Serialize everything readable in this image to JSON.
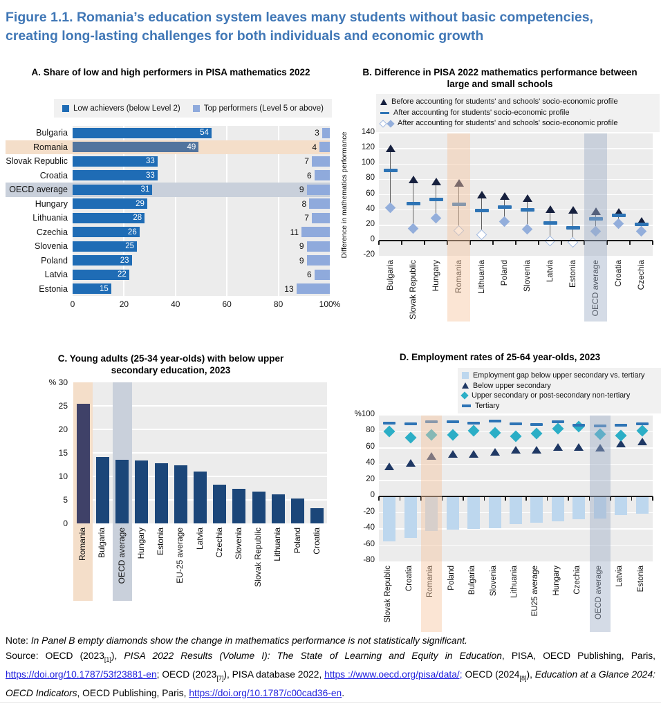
{
  "figure_title": {
    "line1": "Figure 1.1. Romania’s education system leaves many students without basic competencies,",
    "line2": "creating long-lasting challenges for both individuals and economic growth"
  },
  "colors": {
    "figure_title": "#4077B6",
    "plot_bg": "#ECECEC",
    "legend_bg": "#F1F1F1",
    "highlight_orange": "#F4DEC9",
    "highlight_bluegrey": "#C9D0DB",
    "overlay_orange": "rgba(246,198,160,0.45)",
    "overlay_bluegrey": "rgba(160,175,200,0.45)",
    "axis_line": "#1A1A1A",
    "link_blue": "#2222DD"
  },
  "chart_data": [
    {
      "id": "A",
      "type": "bar",
      "orientation": "horizontal",
      "title": "A. Share of low and high performers in PISA mathematics 2022",
      "legend": [
        {
          "label": "Low achievers (below Level 2)",
          "marker": "square",
          "color": "#1F6CB5"
        },
        {
          "label": "Top performers (Level 5 or above)",
          "marker": "square",
          "color": "#8FAADC"
        }
      ],
      "categories": [
        "Bulgaria",
        "Romania",
        "Slovak Republic",
        "Croatia",
        "OECD average",
        "Hungary",
        "Lithuania",
        "Czechia",
        "Slovenia",
        "Poland",
        "Latvia",
        "Estonia"
      ],
      "series": [
        {
          "name": "Low achievers (below Level 2)",
          "color": "#1F6CB5",
          "values": [
            54,
            49,
            33,
            33,
            31,
            29,
            28,
            26,
            25,
            23,
            22,
            15
          ]
        },
        {
          "name": "Top performers (Level 5 or above)",
          "color": "#8FAADC",
          "values": [
            3,
            4,
            7,
            6,
            9,
            8,
            7,
            11,
            9,
            9,
            6,
            13
          ]
        }
      ],
      "romania_bar_color": "#52749E",
      "x_ticks": [
        "0",
        "20",
        "40",
        "60",
        "80",
        "100%"
      ],
      "xlim": [
        0,
        100
      ],
      "highlights": [
        {
          "category": "Romania",
          "color": "#F4DEC9"
        },
        {
          "category": "OECD average",
          "color": "#C9D0DB"
        }
      ]
    },
    {
      "id": "B",
      "type": "scatter",
      "title": "B. Difference in PISA 2022 mathematics performance between large and small schools",
      "ylabel": "Difference in mathematics performance",
      "legend": [
        {
          "label": "Before accounting for students' and schools' socio-economic profile",
          "marker": "triangle",
          "color": "#16203E"
        },
        {
          "label": "After accounting for students' socio-economic profile",
          "marker": "dash",
          "color": "#2E74B5"
        },
        {
          "label": "After accounting for students' and schools' socio-economic profile",
          "marker": "diamond-pair",
          "color": "#93AEDB"
        }
      ],
      "categories": [
        "Bulgaria",
        "Slovak Republic",
        "Hungary",
        "Romania",
        "Lithuania",
        "Poland",
        "Slovenia",
        "Latvia",
        "Estonia",
        "OECD average",
        "Croatia",
        "Czechia"
      ],
      "series": [
        {
          "name": "Before accounting for students' and schools' socio-economic profile",
          "marker": "triangle",
          "color": "#16203E",
          "values": [
            120,
            79,
            77,
            75,
            60,
            58,
            55,
            41,
            40,
            38,
            37,
            25
          ]
        },
        {
          "name": "After accounting for students' socio-economic profile",
          "marker": "dash",
          "color": "#2E74B5",
          "values": [
            92,
            48,
            54,
            47,
            39,
            44,
            40,
            23,
            17,
            28,
            33,
            21
          ]
        },
        {
          "name": "After accounting for students' and schools' socio-economic profile",
          "marker": "diamond",
          "color": "#93AEDB",
          "values": [
            43,
            16,
            29,
            13,
            8,
            25,
            15,
            -1,
            -2,
            12,
            22,
            12
          ]
        }
      ],
      "not_significant": [
        "Romania",
        "Lithuania",
        "Latvia",
        "Estonia"
      ],
      "diamond_empty_border": "#9FB8DF",
      "y_ticks": [
        "140",
        "120",
        "100",
        "80",
        "60",
        "40",
        "20",
        "0",
        "-20"
      ],
      "ylim": [
        -20,
        140
      ],
      "highlights": [
        {
          "category": "Romania",
          "color": "rgba(246,198,160,0.45)"
        },
        {
          "category": "OECD average",
          "color": "rgba(160,175,200,0.45)"
        }
      ]
    },
    {
      "id": "C",
      "type": "bar",
      "orientation": "vertical",
      "title": "C. Young adults (25-34 year-olds) with below upper secondary education, 2023",
      "categories": [
        "Romania",
        "Bulgaria",
        "OECD average",
        "Hungary",
        "Estonia",
        "EU-25 average",
        "Latvia",
        "Czechia",
        "Slovenia",
        "Slovak Republic",
        "Lithuania",
        "Poland",
        "Croatia"
      ],
      "values": [
        25.4,
        14.1,
        13.6,
        13.4,
        12.8,
        12.3,
        11.0,
        8.3,
        7.3,
        6.7,
        6.2,
        5.3,
        3.3
      ],
      "bar_color": "#1B4679",
      "romania_bar_color": "#3F4168",
      "y_ticks": [
        "% 30",
        "25",
        "20",
        "15",
        "10",
        "5",
        "0"
      ],
      "ylim": [
        0,
        30
      ],
      "highlights": [
        {
          "category": "Romania",
          "color": "#F4DEC9"
        },
        {
          "category": "OECD average",
          "color": "#C9D0DB"
        }
      ]
    },
    {
      "id": "D",
      "type": "mixed",
      "title": "D. Employment rates of 25-64 year-olds, 2023",
      "legend": [
        {
          "label": "Employment gap below upper secondary vs. tertiary",
          "marker": "square",
          "color": "#BDD7EE"
        },
        {
          "label": "Below upper secondary",
          "marker": "triangle",
          "color": "#1F3864"
        },
        {
          "label": "Upper secondary or post-secondary non-tertiary",
          "marker": "diamond",
          "color": "#2BAEC6"
        },
        {
          "label": "Tertiary",
          "marker": "dash",
          "color": "#2E74B5"
        }
      ],
      "categories": [
        "Slovak Republic",
        "Croatia",
        "Romania",
        "Poland",
        "Bulgaria",
        "Slovenia",
        "Lithuania",
        "EU25 average",
        "Hungary",
        "Czechia",
        "OECD average",
        "Latvia",
        "Estonia"
      ],
      "series": [
        {
          "name": "Employment gap below upper secondary vs. tertiary",
          "marker": "bar",
          "color": "#BDD7EE",
          "values": [
            -54,
            -50,
            -42,
            -40,
            -39,
            -38,
            -33,
            -31,
            -30,
            -27,
            -26,
            -22,
            -20
          ]
        },
        {
          "name": "Below upper secondary",
          "marker": "triangle",
          "color": "#1F3864",
          "values": [
            37,
            41,
            50,
            52,
            52,
            55,
            57,
            57,
            61,
            61,
            60,
            65,
            68
          ]
        },
        {
          "name": "Upper secondary or post-secondary non-tertiary",
          "marker": "diamond",
          "color": "#2BAEC6",
          "values": [
            80,
            73,
            76,
            76,
            81,
            79,
            74,
            78,
            84,
            86,
            77,
            75,
            81
          ]
        },
        {
          "name": "Tertiary",
          "marker": "dash",
          "color": "#2E74B5",
          "values": [
            91,
            90,
            92,
            92,
            91,
            93,
            90,
            89,
            92,
            88,
            87,
            88,
            90
          ]
        }
      ],
      "y_ticks": [
        "%100",
        "80",
        "60",
        "40",
        "20",
        "0",
        "-20",
        "-40",
        "-60",
        "-80"
      ],
      "ylim": [
        -80,
        100
      ],
      "highlights": [
        {
          "category": "Romania",
          "color": "rgba(246,198,160,0.45)"
        },
        {
          "category": "OECD average",
          "color": "rgba(160,175,200,0.45)"
        }
      ]
    }
  ],
  "note": {
    "label": "Note: ",
    "text": "In Panel B empty diamonds show the change in mathematics performance is not statistically significant."
  },
  "source_segments": [
    {
      "t": "Source: OECD (2023",
      "s": "normal"
    },
    {
      "t": "[1]",
      "s": "sub"
    },
    {
      "t": "), ",
      "s": "normal"
    },
    {
      "t": "PISA 2022 Results (Volume I): The State of Learning and Equity in Education",
      "s": "italic"
    },
    {
      "t": ", PISA, OECD Publishing, Paris, ",
      "s": "normal"
    },
    {
      "t": "https://doi.org/10.1787/53f23881-en",
      "s": "link"
    },
    {
      "t": "; OECD (2023",
      "s": "normal"
    },
    {
      "t": "[7]",
      "s": "sub"
    },
    {
      "t": "), PISA database 2022, ",
      "s": "normal"
    },
    {
      "t": "https ://www.oecd.org/pisa/data/;",
      "s": "link"
    },
    {
      "t": " OECD (2024",
      "s": "normal"
    },
    {
      "t": "[8]",
      "s": "sub"
    },
    {
      "t": "), ",
      "s": "normal"
    },
    {
      "t": "Education at a Glance 2024: OECD Indicators",
      "s": "italic"
    },
    {
      "t": ", OECD Publishing, Paris, ",
      "s": "normal"
    },
    {
      "t": "https://doi.org/10.1787/c00cad36-en",
      "s": "link"
    },
    {
      "t": ".",
      "s": "normal"
    }
  ]
}
